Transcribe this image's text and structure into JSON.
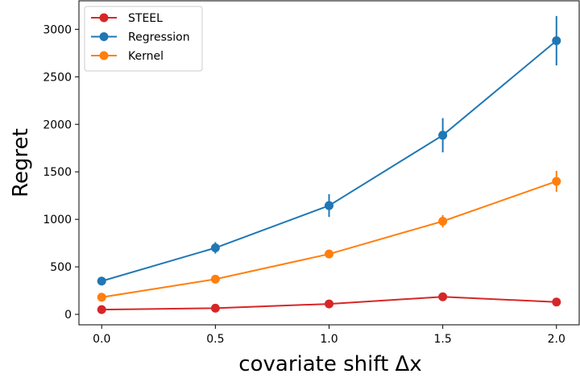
{
  "chart_data": {
    "type": "line",
    "title": "",
    "xlabel": "covariate shift  Δx",
    "ylabel": "Regret",
    "x": [
      0.0,
      0.5,
      1.0,
      1.5,
      2.0
    ],
    "xlim": [
      -0.1,
      2.1
    ],
    "ylim": [
      -110,
      3300
    ],
    "xticks": [
      0.0,
      0.5,
      1.0,
      1.5,
      2.0
    ],
    "xtick_labels": [
      "0.0",
      "0.5",
      "1.0",
      "1.5",
      "2.0"
    ],
    "yticks": [
      0,
      500,
      1000,
      1500,
      2000,
      2500,
      3000
    ],
    "ytick_labels": [
      "0",
      "500",
      "1000",
      "1500",
      "2000",
      "2500",
      "3000"
    ],
    "grid": false,
    "legend_position": "top-left",
    "series": [
      {
        "name": "STEEL",
        "color": "#d62728",
        "values": [
          50,
          65,
          110,
          185,
          130
        ],
        "errors": [
          0,
          0,
          0,
          0,
          0
        ]
      },
      {
        "name": "Regression",
        "color": "#1f77b4",
        "values": [
          350,
          700,
          1145,
          1885,
          2880
        ],
        "errors": [
          0,
          60,
          120,
          180,
          260
        ]
      },
      {
        "name": "Kernel",
        "color": "#ff7f0e",
        "values": [
          180,
          370,
          635,
          980,
          1400
        ],
        "errors": [
          0,
          0,
          0,
          65,
          110
        ]
      }
    ]
  }
}
